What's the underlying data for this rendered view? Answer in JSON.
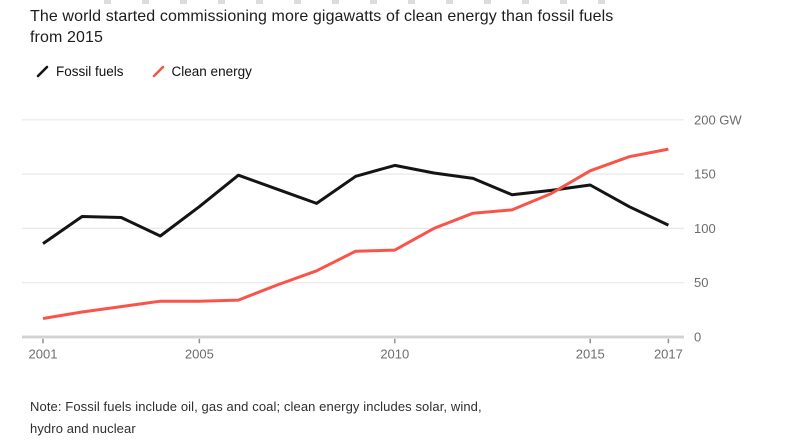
{
  "header": {
    "title_line1": "The world started commissioning more gigawatts of clean energy than fossil fuels",
    "title_line2": "from 2015"
  },
  "legend": {
    "items": [
      {
        "label": "Fossil fuels",
        "color": "#141414"
      },
      {
        "label": "Clean energy",
        "color": "#f9544a"
      }
    ]
  },
  "chart_data": {
    "type": "line",
    "title": "The world started commissioning more gigawatts of clean energy than fossil fuels from 2015",
    "x": [
      2001,
      2002,
      2003,
      2004,
      2005,
      2006,
      2007,
      2008,
      2009,
      2010,
      2011,
      2012,
      2013,
      2014,
      2015,
      2016,
      2017
    ],
    "series": [
      {
        "name": "Fossil fuels",
        "color": "#141414",
        "values": [
          86,
          111,
          110,
          93,
          120,
          149,
          136,
          123,
          148,
          158,
          151,
          146,
          131,
          135,
          140,
          120,
          103
        ]
      },
      {
        "name": "Clean energy",
        "color": "#f9544a",
        "values": [
          17,
          23,
          28,
          33,
          33,
          34,
          48,
          61,
          79,
          80,
          100,
          114,
          117,
          132,
          153,
          166,
          173
        ]
      }
    ],
    "unit": "GW",
    "xlim": [
      2001,
      2017
    ],
    "ylim": [
      0,
      200
    ],
    "grid": true,
    "legend_position": "top-left",
    "y_axis_side": "right",
    "y_ticks": [
      {
        "value": 200,
        "label": "200 GW"
      },
      {
        "value": 150,
        "label": "150"
      },
      {
        "value": 100,
        "label": "100"
      },
      {
        "value": 50,
        "label": "50"
      },
      {
        "value": 0,
        "label": "0"
      }
    ],
    "x_ticks": [
      {
        "value": 2001,
        "label": "2001"
      },
      {
        "value": 2005,
        "label": "2005"
      },
      {
        "value": 2010,
        "label": "2010"
      },
      {
        "value": 2015,
        "label": "2015"
      },
      {
        "value": 2017,
        "label": "2017"
      }
    ]
  },
  "note": {
    "line1": "Note: Fossil fuels include oil, gas and coal; clean energy includes solar, wind,",
    "line2": "hydro and nuclear"
  },
  "colors": {
    "fossil": "#141414",
    "clean": "#f9544a",
    "gridline": "#e8e8e8",
    "axis_bar": "#d2d2d2",
    "tick": "#8f8f8f",
    "axis_label": "#6d6d6d"
  }
}
